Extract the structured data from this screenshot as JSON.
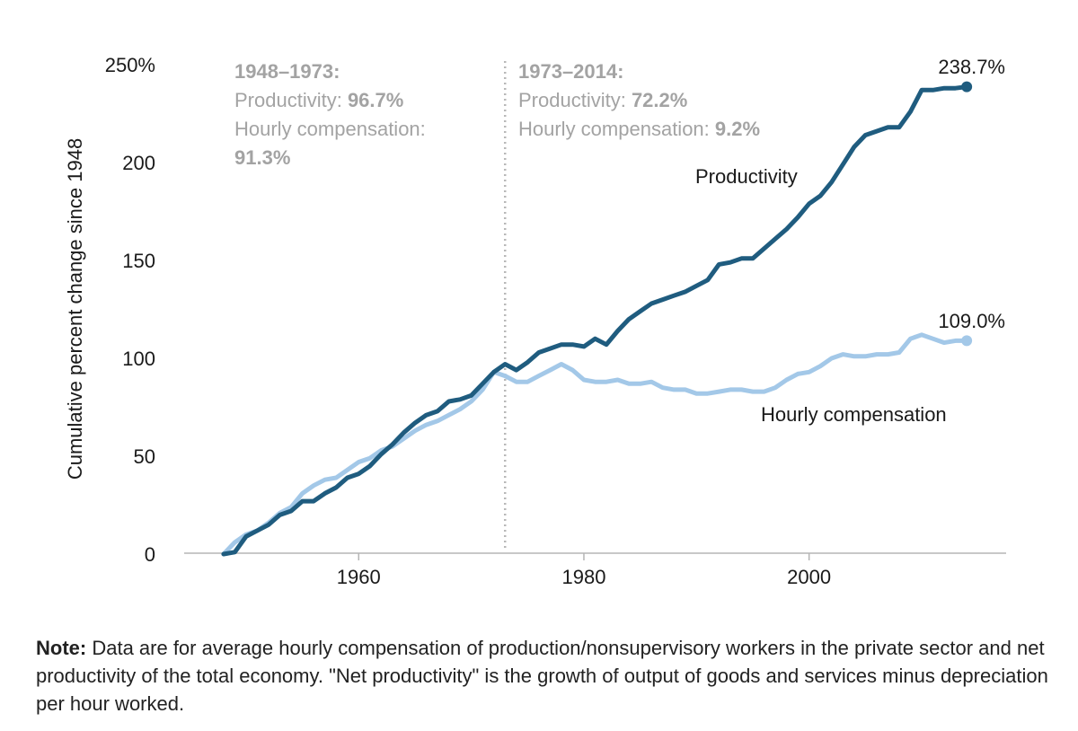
{
  "chart_data": {
    "type": "line",
    "ylabel": "Cumulative percent change since 1948",
    "xlabel": "",
    "xlim": [
      1944.5,
      2017.5
    ],
    "ylim": [
      0,
      250
    ],
    "yticks": [
      {
        "value": 0,
        "label": "0"
      },
      {
        "value": 50,
        "label": "50"
      },
      {
        "value": 100,
        "label": "100"
      },
      {
        "value": 150,
        "label": "150"
      },
      {
        "value": 200,
        "label": "200"
      },
      {
        "value": 250,
        "label": "250%"
      }
    ],
    "xticks": [
      {
        "value": 1960,
        "label": "1960"
      },
      {
        "value": 1980,
        "label": "1980"
      },
      {
        "value": 2000,
        "label": "2000"
      }
    ],
    "divider_year": 1973,
    "annotations": {
      "left": {
        "title": "1948–1973:",
        "prod_label": "Productivity: ",
        "prod_value": "96.7%",
        "comp_label": "Hourly compensation:",
        "comp_value": "91.3%"
      },
      "right": {
        "title": "1973–2014:",
        "prod_label": "Productivity: ",
        "prod_value": "72.2%",
        "comp_label": "Hourly compensation: ",
        "comp_value": "9.2%"
      }
    },
    "series": [
      {
        "name": "Productivity",
        "color": "#1f5c7f",
        "end_label": "238.7%",
        "x": [
          1948,
          1949,
          1950,
          1951,
          1952,
          1953,
          1954,
          1955,
          1956,
          1957,
          1958,
          1959,
          1960,
          1961,
          1962,
          1963,
          1964,
          1965,
          1966,
          1967,
          1968,
          1969,
          1970,
          1971,
          1972,
          1973,
          1974,
          1975,
          1976,
          1977,
          1978,
          1979,
          1980,
          1981,
          1982,
          1983,
          1984,
          1985,
          1986,
          1987,
          1988,
          1989,
          1990,
          1991,
          1992,
          1993,
          1994,
          1995,
          1996,
          1997,
          1998,
          1999,
          2000,
          2001,
          2002,
          2003,
          2004,
          2005,
          2006,
          2007,
          2008,
          2009,
          2010,
          2011,
          2012,
          2013,
          2014
        ],
        "values": [
          0,
          1,
          9,
          12,
          15,
          20,
          22,
          27,
          27,
          31,
          34,
          39,
          41,
          45,
          51,
          56,
          62,
          67,
          71,
          73,
          78,
          79,
          81,
          87,
          93,
          97,
          94,
          98,
          103,
          105,
          107,
          107,
          106,
          110,
          107,
          114,
          120,
          124,
          128,
          130,
          132,
          134,
          137,
          140,
          148,
          149,
          151,
          151,
          156,
          161,
          166,
          172,
          179,
          183,
          190,
          199,
          208,
          214,
          216,
          218,
          218,
          226,
          237,
          237,
          238,
          238,
          238.7
        ]
      },
      {
        "name": "Hourly compensation",
        "color": "#a3c8e8",
        "end_label": "109.0%",
        "x": [
          1948,
          1949,
          1950,
          1951,
          1952,
          1953,
          1954,
          1955,
          1956,
          1957,
          1958,
          1959,
          1960,
          1961,
          1962,
          1963,
          1964,
          1965,
          1966,
          1967,
          1968,
          1969,
          1970,
          1971,
          1972,
          1973,
          1974,
          1975,
          1976,
          1977,
          1978,
          1979,
          1980,
          1981,
          1982,
          1983,
          1984,
          1985,
          1986,
          1987,
          1988,
          1989,
          1990,
          1991,
          1992,
          1993,
          1994,
          1995,
          1996,
          1997,
          1998,
          1999,
          2000,
          2001,
          2002,
          2003,
          2004,
          2005,
          2006,
          2007,
          2008,
          2009,
          2010,
          2011,
          2012,
          2013,
          2014
        ],
        "values": [
          0,
          6,
          10,
          12,
          16,
          21,
          24,
          31,
          35,
          38,
          39,
          43,
          47,
          49,
          53,
          55,
          59,
          63,
          66,
          68,
          71,
          74,
          78,
          84,
          93,
          91,
          88,
          88,
          91,
          94,
          97,
          94,
          89,
          88,
          88,
          89,
          87,
          87,
          88,
          85,
          84,
          84,
          82,
          82,
          83,
          84,
          84,
          83,
          83,
          85,
          89,
          92,
          93,
          96,
          100,
          102,
          101,
          101,
          102,
          102,
          103,
          110,
          112,
          110,
          108,
          109,
          109.0
        ]
      }
    ],
    "series_labels": {
      "productivity": "Productivity",
      "compensation": "Hourly compensation"
    }
  },
  "note": {
    "label": "Note:",
    "text": " Data are for average hourly compensation of production/nonsupervisory workers in the private sector and net productivity of the total economy. \"Net productivity\" is the growth of output of goods and services minus depreciation per hour worked."
  }
}
